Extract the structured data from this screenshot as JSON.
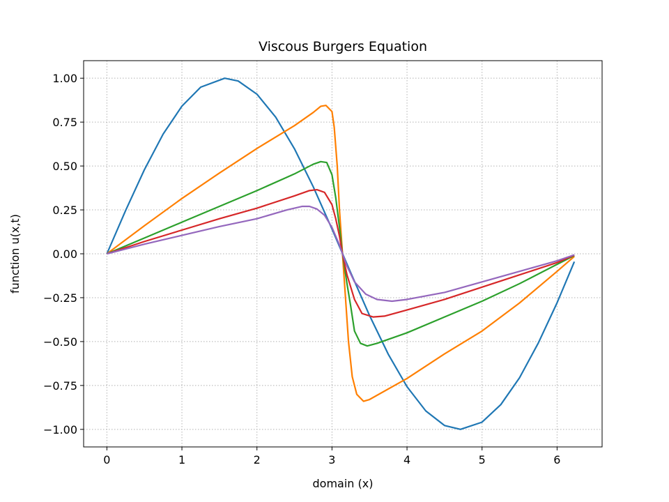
{
  "chart_data": {
    "type": "line",
    "title": "Viscous Burgers Equation",
    "xlabel": "domain (x)",
    "ylabel": "function u(x,t)",
    "xlim": [
      -0.31,
      6.6
    ],
    "ylim": [
      -1.1,
      1.1
    ],
    "xticks": [
      0,
      1,
      2,
      3,
      4,
      5,
      6
    ],
    "xtick_labels": [
      "0",
      "1",
      "2",
      "3",
      "4",
      "5",
      "6"
    ],
    "yticks": [
      1.0,
      0.75,
      0.5,
      0.25,
      0.0,
      -0.25,
      -0.5,
      -0.75,
      -1.0
    ],
    "ytick_labels": [
      "1.00",
      "0.75",
      "0.50",
      "0.25",
      "0.00",
      "−0.25",
      "−0.50",
      "−0.75",
      "−1.00"
    ],
    "grid": true,
    "series": [
      {
        "color": "#1f77b4",
        "points": [
          [
            0,
            0
          ],
          [
            0.25,
            0.247
          ],
          [
            0.5,
            0.479
          ],
          [
            0.75,
            0.682
          ],
          [
            1.0,
            0.841
          ],
          [
            1.25,
            0.949
          ],
          [
            1.5708,
            1.0
          ],
          [
            1.75,
            0.984
          ],
          [
            2.0,
            0.909
          ],
          [
            2.25,
            0.778
          ],
          [
            2.5,
            0.598
          ],
          [
            2.75,
            0.382
          ],
          [
            3.0,
            0.141
          ],
          [
            3.1416,
            0.0
          ],
          [
            3.25,
            -0.108
          ],
          [
            3.5,
            -0.351
          ],
          [
            3.75,
            -0.572
          ],
          [
            4.0,
            -0.757
          ],
          [
            4.25,
            -0.895
          ],
          [
            4.5,
            -0.978
          ],
          [
            4.7124,
            -1.0
          ],
          [
            5.0,
            -0.959
          ],
          [
            5.25,
            -0.859
          ],
          [
            5.5,
            -0.706
          ],
          [
            5.75,
            -0.508
          ],
          [
            6.0,
            -0.279
          ],
          [
            6.23,
            -0.045
          ]
        ]
      },
      {
        "color": "#ff7f00",
        "points": [
          [
            0,
            0
          ],
          [
            0.5,
            0.16
          ],
          [
            1.0,
            0.315
          ],
          [
            1.5,
            0.46
          ],
          [
            2.0,
            0.6
          ],
          [
            2.5,
            0.73
          ],
          [
            2.75,
            0.805
          ],
          [
            2.85,
            0.84
          ],
          [
            2.92,
            0.845
          ],
          [
            3.0,
            0.81
          ],
          [
            3.03,
            0.72
          ],
          [
            3.07,
            0.5
          ],
          [
            3.1,
            0.25
          ],
          [
            3.14,
            0.0
          ],
          [
            3.18,
            -0.25
          ],
          [
            3.22,
            -0.5
          ],
          [
            3.27,
            -0.7
          ],
          [
            3.33,
            -0.8
          ],
          [
            3.42,
            -0.84
          ],
          [
            3.5,
            -0.83
          ],
          [
            4.0,
            -0.71
          ],
          [
            4.5,
            -0.57
          ],
          [
            5.0,
            -0.44
          ],
          [
            5.5,
            -0.28
          ],
          [
            6.0,
            -0.1
          ],
          [
            6.23,
            -0.015
          ]
        ]
      },
      {
        "color": "#2ca02c",
        "points": [
          [
            0,
            0
          ],
          [
            0.5,
            0.09
          ],
          [
            1.0,
            0.18
          ],
          [
            1.5,
            0.27
          ],
          [
            2.0,
            0.36
          ],
          [
            2.5,
            0.455
          ],
          [
            2.75,
            0.51
          ],
          [
            2.85,
            0.525
          ],
          [
            2.93,
            0.52
          ],
          [
            3.0,
            0.45
          ],
          [
            3.05,
            0.32
          ],
          [
            3.1,
            0.15
          ],
          [
            3.14,
            0.0
          ],
          [
            3.2,
            -0.17
          ],
          [
            3.25,
            -0.3
          ],
          [
            3.3,
            -0.44
          ],
          [
            3.38,
            -0.51
          ],
          [
            3.47,
            -0.525
          ],
          [
            3.6,
            -0.51
          ],
          [
            4.0,
            -0.45
          ],
          [
            4.5,
            -0.36
          ],
          [
            5.0,
            -0.27
          ],
          [
            5.5,
            -0.17
          ],
          [
            6.0,
            -0.06
          ],
          [
            6.23,
            -0.01
          ]
        ]
      },
      {
        "color": "#d62728",
        "points": [
          [
            0,
            0
          ],
          [
            0.5,
            0.07
          ],
          [
            1.0,
            0.135
          ],
          [
            1.5,
            0.2
          ],
          [
            2.0,
            0.26
          ],
          [
            2.5,
            0.33
          ],
          [
            2.7,
            0.36
          ],
          [
            2.8,
            0.365
          ],
          [
            2.9,
            0.35
          ],
          [
            3.0,
            0.28
          ],
          [
            3.05,
            0.2
          ],
          [
            3.1,
            0.1
          ],
          [
            3.14,
            0.0
          ],
          [
            3.2,
            -0.12
          ],
          [
            3.3,
            -0.26
          ],
          [
            3.4,
            -0.34
          ],
          [
            3.55,
            -0.36
          ],
          [
            3.7,
            -0.355
          ],
          [
            4.0,
            -0.32
          ],
          [
            4.5,
            -0.26
          ],
          [
            5.0,
            -0.19
          ],
          [
            5.5,
            -0.12
          ],
          [
            6.0,
            -0.05
          ],
          [
            6.23,
            -0.008
          ]
        ]
      },
      {
        "color": "#9467bd",
        "points": [
          [
            0,
            0
          ],
          [
            0.5,
            0.055
          ],
          [
            1.0,
            0.105
          ],
          [
            1.5,
            0.155
          ],
          [
            2.0,
            0.2
          ],
          [
            2.4,
            0.25
          ],
          [
            2.6,
            0.27
          ],
          [
            2.7,
            0.27
          ],
          [
            2.8,
            0.255
          ],
          [
            2.9,
            0.22
          ],
          [
            3.0,
            0.15
          ],
          [
            3.1,
            0.05
          ],
          [
            3.14,
            0.0
          ],
          [
            3.2,
            -0.07
          ],
          [
            3.3,
            -0.16
          ],
          [
            3.45,
            -0.23
          ],
          [
            3.6,
            -0.26
          ],
          [
            3.8,
            -0.27
          ],
          [
            4.0,
            -0.26
          ],
          [
            4.5,
            -0.22
          ],
          [
            5.0,
            -0.16
          ],
          [
            5.5,
            -0.1
          ],
          [
            6.0,
            -0.04
          ],
          [
            6.23,
            -0.006
          ]
        ]
      }
    ]
  }
}
